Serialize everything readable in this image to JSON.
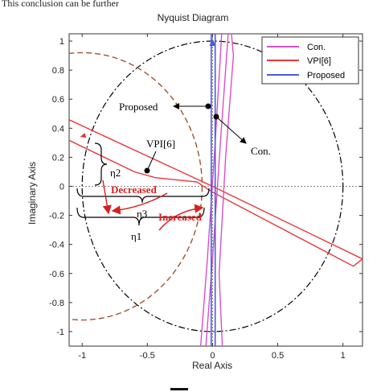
{
  "cut_caption": "This conclusion can be further",
  "chart_data": {
    "type": "line",
    "title": "Nyquist Diagram",
    "xlabel": "Real Axis",
    "ylabel": "Imaginary Axis",
    "xlim": [
      -1.1,
      1.15
    ],
    "ylim": [
      -1.1,
      1.05
    ],
    "xticks": [
      -1,
      -0.5,
      0,
      0.5,
      1
    ],
    "yticks": [
      1,
      0.8,
      0.6,
      0.4,
      0.2,
      0,
      -0.2,
      -0.4,
      -0.6,
      -0.8,
      -1
    ],
    "grid": false,
    "legend": {
      "placement": "top-right"
    },
    "series": [
      {
        "name": "Con.",
        "color": "#d94fc8"
      },
      {
        "name": "VPI[6]",
        "color": "#e8383a"
      },
      {
        "name": "Proposed",
        "color": "#4a5ae0"
      }
    ],
    "annotations": {
      "proposed": "Proposed",
      "con": "Con.",
      "vpi": "VPI[6]",
      "decreased": "Decreased",
      "increased": "Increased",
      "eta1": "η1",
      "eta2": "η2",
      "eta3": "η3"
    }
  }
}
